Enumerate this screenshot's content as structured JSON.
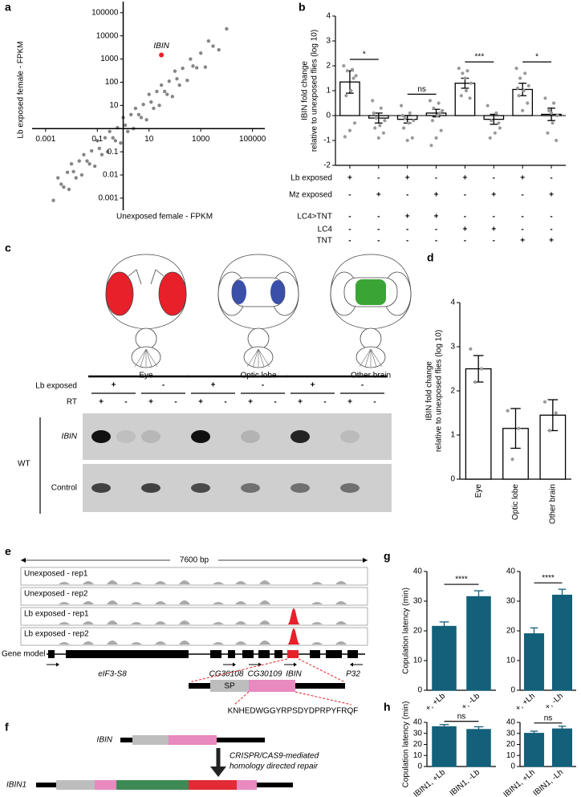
{
  "panel_labels": [
    "a",
    "b",
    "c",
    "d",
    "e",
    "f",
    "g",
    "h"
  ],
  "chart_data": [
    {
      "type": "scatter",
      "xlabel": "Unexposed female - FPKM",
      "ylabel": "Lb exposed female - FPKM",
      "xscale": "log",
      "yscale": "log",
      "xlim": [
        0.0003,
        300000
      ],
      "ylim": [
        0.0003,
        300000
      ],
      "xticks": [
        0.001,
        0.1,
        10,
        1000,
        100000
      ],
      "yticks": [
        0.001,
        0.01,
        0.1,
        10,
        100,
        1000,
        10000,
        100000
      ],
      "axes_cross": [
        1,
        1
      ],
      "color": "#222222",
      "x": [
        0.002,
        0.003,
        0.004,
        0.005,
        0.007,
        0.008,
        0.01,
        0.012,
        0.015,
        0.02,
        0.025,
        0.03,
        0.04,
        0.05,
        0.06,
        0.08,
        0.1,
        0.12,
        0.15,
        0.2,
        0.25,
        0.3,
        0.4,
        0.5,
        0.6,
        0.8,
        1,
        1.2,
        1.5,
        2,
        2.5,
        3,
        4,
        5,
        6,
        8,
        10,
        12,
        15,
        20,
        25,
        30,
        40,
        50,
        60,
        80,
        100,
        120,
        150,
        200,
        300,
        400,
        500,
        700,
        1000,
        1500,
        2000,
        3000,
        5000,
        10000
      ],
      "y": [
        0.0008,
        0.0075,
        0.004,
        0.003,
        0.013,
        0.0024,
        0.03,
        0.014,
        0.0075,
        0.04,
        0.01,
        0.075,
        0.04,
        0.03,
        0.11,
        0.024,
        0.3,
        0.14,
        0.075,
        0.4,
        0.1,
        0.75,
        0.4,
        0.3,
        1.1,
        0.24,
        3,
        1.4,
        0.75,
        4,
        1,
        7.5,
        4,
        3,
        11,
        2.4,
        30,
        14,
        7.5,
        40,
        10,
        75,
        40,
        30,
        110,
        24,
        300,
        140,
        75,
        400,
        120,
        1000,
        500,
        420,
        1800,
        450,
        6000,
        3600,
        2500,
        20000
      ],
      "annotations": [
        {
          "text": "IBIN",
          "x": 30,
          "y": 1500,
          "color": "#e8202a"
        }
      ]
    },
    {
      "type": "bar",
      "ylabel_lines": [
        "IBIN fold change",
        "relative to unexposed flies (log 10)"
      ],
      "ylim": [
        -2,
        4
      ],
      "yticks": [
        -2,
        -1,
        0,
        1,
        2,
        3,
        4
      ],
      "values": [
        1.35,
        -0.1,
        -0.15,
        0.1,
        1.3,
        -0.15,
        1.05,
        0.05
      ],
      "errors": [
        0.45,
        0.2,
        0.15,
        0.15,
        0.2,
        0.2,
        0.25,
        0.25
      ],
      "points": [
        [
          2.0,
          1.85,
          1.8,
          1.6,
          1.0,
          0.8,
          -0.3,
          -0.6,
          -0.85,
          1.5
        ],
        [
          0.6,
          0.3,
          -0.1,
          -0.2,
          -0.4,
          -0.5,
          -0.7,
          -0.9,
          0.1
        ],
        [
          0.4,
          0.1,
          -0.1,
          -0.2,
          -0.3,
          -0.5,
          -0.9,
          -1.0,
          0.0
        ],
        [
          0.6,
          0.5,
          0.3,
          0.2,
          0.0,
          -0.2,
          -0.6,
          -0.9,
          -1.2,
          0.1
        ],
        [
          1.9,
          1.8,
          1.7,
          1.3,
          1.0,
          0.8,
          0.7,
          1.5
        ],
        [
          0.4,
          0.1,
          -0.2,
          -0.5,
          -0.7,
          -0.9,
          -0.3
        ],
        [
          1.9,
          1.7,
          1.5,
          1.2,
          1.0,
          0.8,
          0.5,
          0.2,
          1.1
        ],
        [
          0.7,
          0.5,
          0.2,
          0.0,
          -0.3,
          -0.7,
          -1.0,
          0.1
        ]
      ],
      "color": "#ffffff",
      "edgecolor": "#000000",
      "error_color": "#000000",
      "point_color": "#9a9a9a",
      "significance": [
        {
          "bars": [
            0,
            1
          ],
          "label": "*"
        },
        {
          "bars": [
            2,
            3
          ],
          "label": "ns"
        },
        {
          "bars": [
            4,
            5
          ],
          "label": "***"
        },
        {
          "bars": [
            6,
            7
          ],
          "label": "*"
        }
      ],
      "condition_rows": [
        {
          "label": "Lb exposed",
          "marks": [
            "+",
            "-",
            "+",
            "-",
            "+",
            "-",
            "+",
            "-"
          ]
        },
        {
          "label": "Mz exposed",
          "marks": [
            "-",
            "+",
            "-",
            "+",
            "-",
            "+",
            "-",
            "+"
          ]
        },
        {
          "label": "LC4>TNT",
          "marks": [
            "-",
            "-",
            "+",
            "+",
            "-",
            "-",
            "-",
            "-"
          ]
        },
        {
          "label": "LC4",
          "marks": [
            "-",
            "-",
            "-",
            "-",
            "+",
            "+",
            "-",
            "-"
          ]
        },
        {
          "label": "TNT",
          "marks": [
            "-",
            "-",
            "-",
            "-",
            "-",
            "-",
            "+",
            "+"
          ]
        }
      ]
    },
    {
      "type": "bar",
      "categories": [
        "Eye",
        "Optic lobe",
        "Other brain"
      ],
      "category_colors": [
        "#e8202a",
        "#3a4fa8",
        "#3aa535"
      ],
      "ylabel_lines": [
        "IBIN fold change",
        "relative to unexposed  flies (log 10)"
      ],
      "ylim": [
        0,
        4
      ],
      "yticks": [
        0,
        1,
        2,
        3,
        4
      ],
      "values": [
        2.5,
        1.15,
        1.45
      ],
      "errors": [
        0.3,
        0.45,
        0.35
      ],
      "points": [
        [
          2.95,
          2.5,
          2.2
        ],
        [
          1.55,
          1.15,
          0.45
        ],
        [
          1.75,
          1.5,
          1.1
        ]
      ],
      "color": "#ffffff",
      "edgecolor": "#000000",
      "error_color": "#000000",
      "point_color": "#9a9a9a"
    },
    {
      "type": "bar",
      "ylabel": "Copulation latency (min)",
      "categories": [
        "+, +Lb",
        "+, -Lb"
      ],
      "ylim": [
        0,
        40
      ],
      "yticks": [
        0,
        10,
        20,
        30,
        40
      ],
      "values": [
        21.5,
        31.5
      ],
      "errors": [
        1.5,
        2
      ],
      "color": "#13607a",
      "edgecolor": "#13607a",
      "error_color": "#13607a",
      "significance": [
        {
          "bars": [
            0,
            1
          ],
          "label": "****"
        }
      ]
    },
    {
      "type": "bar",
      "categories": [
        "+, +Lh",
        "+, -Lh"
      ],
      "ylim": [
        0,
        40
      ],
      "yticks": [
        0,
        10,
        20,
        30,
        40
      ],
      "values": [
        19,
        32
      ],
      "errors": [
        2,
        2
      ],
      "color": "#13607a",
      "edgecolor": "#13607a",
      "error_color": "#13607a",
      "significance": [
        {
          "bars": [
            0,
            1
          ],
          "label": "****"
        }
      ]
    },
    {
      "type": "bar",
      "ylabel": "Copulation latency (min)",
      "categories": [
        "IBIN1, +Lb",
        "IBIN1, -Lb"
      ],
      "ylim": [
        0,
        40
      ],
      "yticks": [
        0,
        10,
        20,
        30,
        40
      ],
      "values": [
        36,
        33.5
      ],
      "errors": [
        2,
        2.5
      ],
      "color": "#13607a",
      "edgecolor": "#13607a",
      "error_color": "#13607a",
      "significance": [
        {
          "bars": [
            0,
            1
          ],
          "label": "ns"
        }
      ]
    },
    {
      "type": "bar",
      "categories": [
        "IBIN1, +Lh",
        "IBIN1, -Lh"
      ],
      "ylim": [
        0,
        40
      ],
      "yticks": [
        0,
        10,
        20,
        30,
        40
      ],
      "values": [
        30,
        34
      ],
      "errors": [
        2,
        2.5
      ],
      "color": "#13607a",
      "edgecolor": "#13607a",
      "error_color": "#13607a",
      "significance": [
        {
          "bars": [
            0,
            1
          ],
          "label": "ns"
        }
      ]
    }
  ],
  "panel_c": {
    "head_labels": [
      "Eye",
      "Optic lobe",
      "Other brain"
    ],
    "row_labels": [
      "Lb exposed",
      "RT"
    ],
    "lb_marks": [
      "+",
      "-",
      "+",
      "-",
      "+",
      "-"
    ],
    "rt_marks": [
      "+",
      "-",
      "+",
      "-",
      "+",
      "-",
      "+",
      "-",
      "+",
      "-",
      "+",
      "-"
    ],
    "gel_labels": [
      "IBIN",
      "Control"
    ],
    "genotype": "WT"
  },
  "panel_e": {
    "scale": "7600 bp",
    "tracks": [
      "Unexposed - rep1",
      "Unexposed - rep2",
      "Lb exposed - rep1",
      "Lb exposed - rep2"
    ],
    "gene_model_label": "Gene model",
    "genes": [
      "eIF3-S8",
      "CG30108",
      "CG30109",
      "IBIN",
      "P32"
    ],
    "domain": "SP",
    "peptide": "KNHEDWGGYRPSDYDPRPYFRQF"
  },
  "panel_f": {
    "wildtype": "IBIN",
    "method_lines": [
      "CRISPR/CAS9-mediated",
      "homology directed repair"
    ],
    "mutant": "IBIN1"
  }
}
